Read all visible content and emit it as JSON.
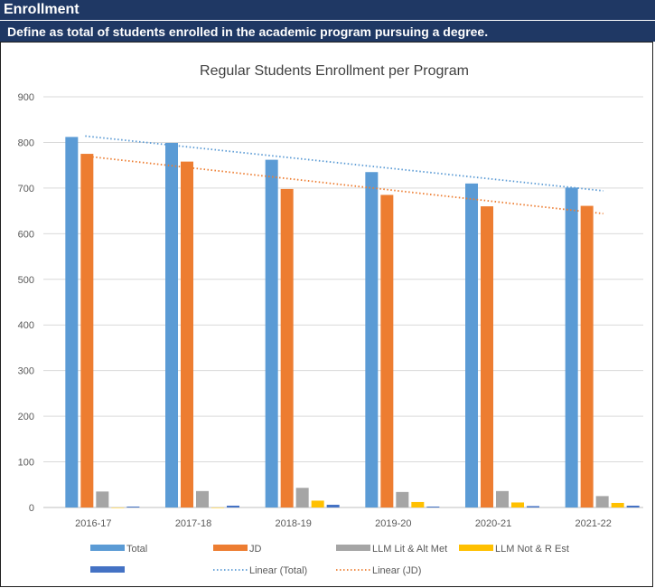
{
  "header": {
    "title": "Enrollment",
    "subtitle": "Define as total of students enrolled in the academic program pursuing a degree."
  },
  "chart_data": {
    "type": "bar",
    "title": "Regular Students Enrollment per Program",
    "categories": [
      "2016-17",
      "2017-18",
      "2018-19",
      "2019-20",
      "2020-21",
      "2021-22"
    ],
    "ylim": [
      0,
      900
    ],
    "yticks": [
      "0",
      "100",
      "200",
      "300",
      "400",
      "500",
      "600",
      "700",
      "800",
      "900"
    ],
    "grid": true,
    "legend_position": "bottom",
    "series": [
      {
        "name": "Total",
        "color": "#5b9bd5",
        "values": [
          812,
          799,
          762,
          735,
          710,
          701
        ]
      },
      {
        "name": "JD",
        "color": "#ed7d31",
        "values": [
          775,
          758,
          698,
          685,
          660,
          661
        ]
      },
      {
        "name": "LLM Lit & Alt Met",
        "color": "#a5a5a5",
        "values": [
          35,
          36,
          43,
          34,
          36,
          25
        ]
      },
      {
        "name": "LLM Not & R Est",
        "color": "#ffc000",
        "values": [
          0,
          0,
          15,
          12,
          11,
          10
        ]
      },
      {
        "name": "",
        "color": "#4472c4",
        "values": [
          2,
          4,
          6,
          2,
          3,
          4
        ]
      }
    ],
    "trendlines": [
      {
        "name": "Linear (Total)",
        "color": "#5b9bd5",
        "start": 814,
        "end": 694
      },
      {
        "name": "Linear (JD)",
        "color": "#ed7d31",
        "start": 770,
        "end": 644
      }
    ]
  }
}
